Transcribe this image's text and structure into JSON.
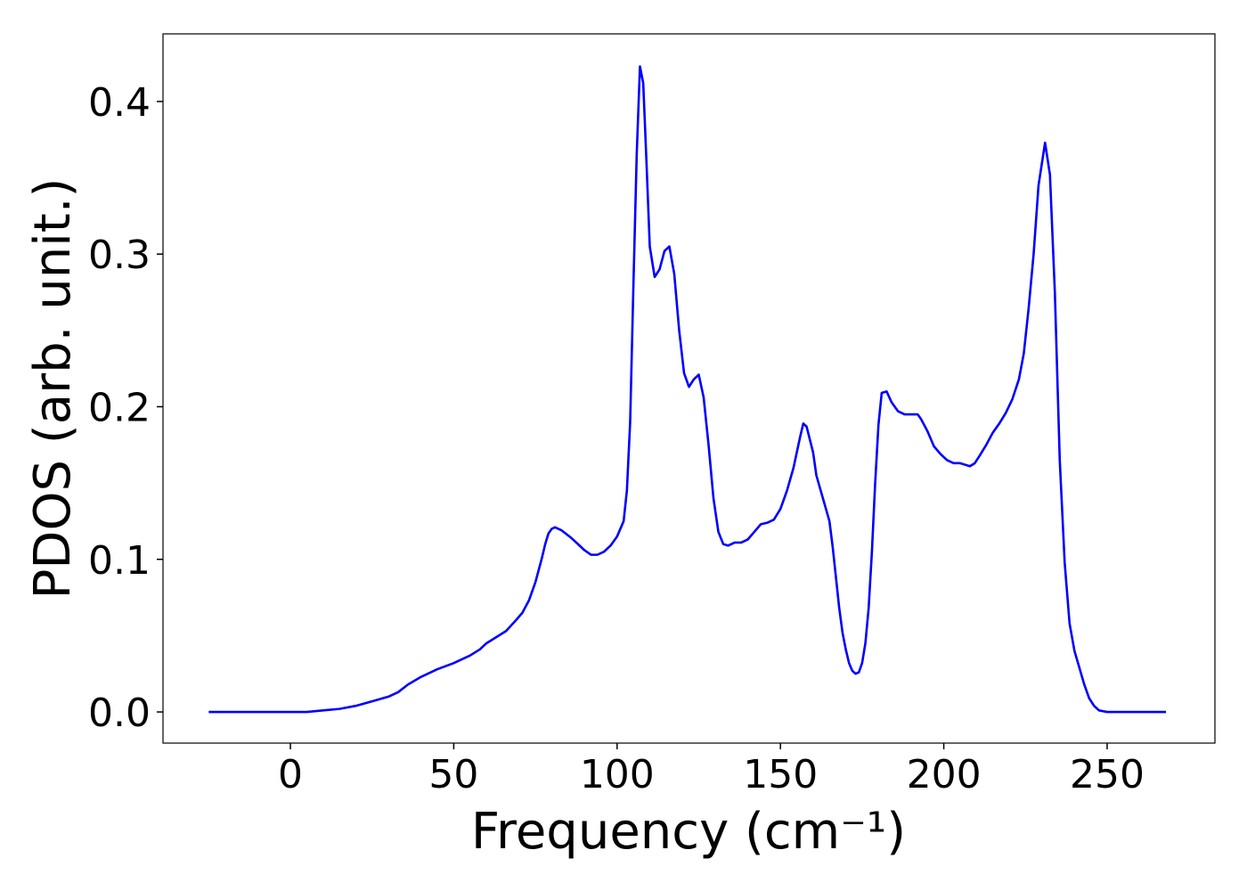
{
  "chart_data": {
    "type": "line",
    "xlabel": "Frequency (cm⁻¹)",
    "ylabel": "PDOS (arb. unit.)",
    "x": [
      -25,
      -15,
      -5,
      5,
      10,
      15,
      20,
      25,
      30,
      33,
      36,
      40,
      45,
      50,
      55,
      58,
      60,
      63,
      66,
      69,
      71,
      73,
      75,
      77,
      78,
      79,
      80,
      81,
      83,
      86,
      88,
      90,
      92,
      94,
      96,
      98,
      100,
      102,
      103,
      104,
      105,
      106,
      107,
      108,
      109,
      110,
      111.5,
      113,
      114.5,
      116,
      117.5,
      119,
      120.5,
      122,
      123.5,
      125,
      126.5,
      128,
      129.5,
      131,
      132.5,
      134,
      136,
      138,
      140,
      142,
      144,
      146,
      148,
      150,
      152,
      154,
      156,
      157,
      158,
      160,
      161,
      163,
      165,
      166,
      167,
      168,
      169,
      170,
      171,
      172,
      173,
      174,
      175,
      176,
      177,
      178,
      179,
      180,
      181,
      182.5,
      184,
      186,
      188,
      190,
      192,
      193,
      195,
      197,
      199,
      201,
      203,
      205,
      206.5,
      208,
      209.5,
      211,
      213,
      215,
      217,
      219,
      221,
      223,
      224.5,
      226,
      227.5,
      229,
      231,
      232.5,
      234,
      235.5,
      237,
      238.5,
      240,
      241.5,
      243,
      244.5,
      246,
      247.5,
      250,
      268
    ],
    "series": [
      {
        "name": "PDOS",
        "color": "#0000ff",
        "values": [
          0,
          0,
          0,
          0,
          0.001,
          0.002,
          0.004,
          0.007,
          0.01,
          0.013,
          0.018,
          0.023,
          0.028,
          0.032,
          0.037,
          0.041,
          0.045,
          0.049,
          0.053,
          0.06,
          0.065,
          0.073,
          0.085,
          0.101,
          0.11,
          0.117,
          0.12,
          0.121,
          0.119,
          0.114,
          0.11,
          0.106,
          0.103,
          0.103,
          0.105,
          0.109,
          0.115,
          0.125,
          0.145,
          0.19,
          0.28,
          0.365,
          0.423,
          0.412,
          0.36,
          0.305,
          0.285,
          0.29,
          0.302,
          0.305,
          0.287,
          0.25,
          0.222,
          0.213,
          0.218,
          0.221,
          0.206,
          0.175,
          0.14,
          0.118,
          0.11,
          0.109,
          0.111,
          0.111,
          0.113,
          0.118,
          0.123,
          0.124,
          0.126,
          0.133,
          0.145,
          0.16,
          0.18,
          0.189,
          0.187,
          0.17,
          0.155,
          0.14,
          0.125,
          0.108,
          0.088,
          0.068,
          0.052,
          0.041,
          0.032,
          0.027,
          0.025,
          0.026,
          0.032,
          0.045,
          0.068,
          0.105,
          0.15,
          0.188,
          0.209,
          0.21,
          0.203,
          0.197,
          0.195,
          0.195,
          0.195,
          0.192,
          0.184,
          0.174,
          0.169,
          0.165,
          0.163,
          0.163,
          0.162,
          0.161,
          0.163,
          0.168,
          0.175,
          0.183,
          0.189,
          0.196,
          0.205,
          0.218,
          0.235,
          0.265,
          0.3,
          0.345,
          0.373,
          0.352,
          0.275,
          0.165,
          0.098,
          0.058,
          0.04,
          0.029,
          0.018,
          0.009,
          0.004,
          0.001,
          0,
          0
        ]
      }
    ],
    "xlim": [
      -39,
      283
    ],
    "ylim": [
      -0.0204,
      0.4443
    ],
    "xticks": [
      0,
      50,
      100,
      150,
      200,
      250
    ],
    "yticks": [
      {
        "value": 0,
        "label": "0.0"
      },
      0.1,
      0.2,
      0.3,
      0.4
    ]
  }
}
